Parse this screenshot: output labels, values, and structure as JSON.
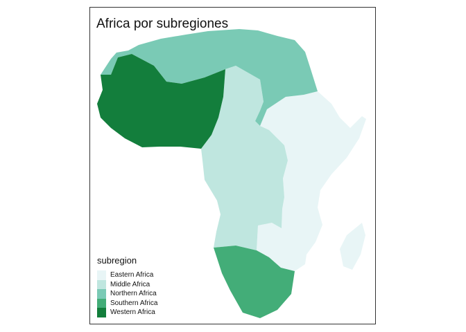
{
  "map": {
    "title": "Africa por subregiones",
    "legend": {
      "title": "subregion",
      "items": [
        {
          "label": "Eastern Africa",
          "color": "#e8f5f6"
        },
        {
          "label": "Middle Africa",
          "color": "#bfe6df"
        },
        {
          "label": "Northern Africa",
          "color": "#7acab5"
        },
        {
          "label": "Southern Africa",
          "color": "#43ad78"
        },
        {
          "label": "Western Africa",
          "color": "#137e3c"
        }
      ]
    }
  }
}
